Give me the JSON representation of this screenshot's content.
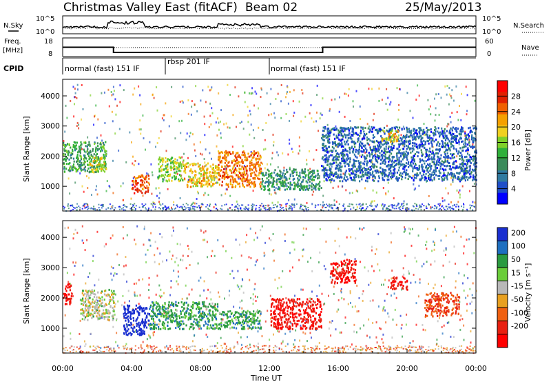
{
  "header": {
    "title": "Christmas Valley East (fitACF)",
    "beam": "Beam 02",
    "date": "25/May/2013"
  },
  "chart_data": [
    {
      "name": "noise",
      "type": "line",
      "left_label": "N.Sky",
      "left_ticks": [
        "10^5",
        "10^0"
      ],
      "right_label": "N.Search",
      "right_ticks": [
        "10^5",
        "10^0"
      ]
    },
    {
      "name": "frequency",
      "type": "line",
      "left_label": "Freq.",
      "left_unit": "[MHz]",
      "left_ticks": [
        "18",
        "8"
      ],
      "right_label": "Nave",
      "right_ticks": [
        "60",
        "0"
      ],
      "x": [
        0,
        2.95,
        2.95,
        15.1,
        15.1,
        24
      ],
      "freq": [
        13,
        13,
        10.2,
        10.2,
        13,
        13
      ]
    },
    {
      "name": "cpid",
      "type": "table",
      "label": "CPID",
      "segments": [
        {
          "start": 0,
          "end": 6,
          "text": "normal (fast) 151 IF"
        },
        {
          "start": 6,
          "end": 12,
          "text": "rbsp 201 IF"
        },
        {
          "start": 12,
          "end": 24,
          "text": "normal (fast) 151 IF"
        }
      ]
    },
    {
      "name": "power",
      "type": "heatmap",
      "ylabel": "Slant Range [km]",
      "yticks": [
        1000,
        2000,
        3000,
        4000
      ],
      "ylim": [
        180,
        4550
      ],
      "colorbar_label": "Power [dB]",
      "colorbar_ticks": [
        4,
        8,
        12,
        16,
        20,
        24,
        28
      ],
      "colorbar_range": [
        0,
        32
      ],
      "colors": [
        "#0000ff",
        "#1e4ec8",
        "#2f7aa0",
        "#3a8a5a",
        "#2fb03a",
        "#7fd02a",
        "#f0d020",
        "#f5a000",
        "#f06000",
        "#e02000",
        "#ff0000"
      ],
      "regions": [
        {
          "t": [
            0,
            2.5
          ],
          "r": [
            1500,
            2500
          ],
          "v": 12
        },
        {
          "t": [
            1.5,
            2.5
          ],
          "r": [
            1500,
            2000
          ],
          "v": 18
        },
        {
          "t": [
            4,
            5
          ],
          "r": [
            800,
            1400
          ],
          "v": 26
        },
        {
          "t": [
            5.5,
            7
          ],
          "r": [
            1200,
            2000
          ],
          "v": 16
        },
        {
          "t": [
            7,
            9
          ],
          "r": [
            1000,
            1800
          ],
          "v": 20
        },
        {
          "t": [
            9,
            11.5
          ],
          "r": [
            1000,
            2200
          ],
          "v": 24
        },
        {
          "t": [
            11.5,
            15
          ],
          "r": [
            900,
            1600
          ],
          "v": 10
        },
        {
          "t": [
            15,
            24
          ],
          "r": [
            1200,
            3000
          ],
          "v": 6
        },
        {
          "t": [
            18.5,
            19.5
          ],
          "r": [
            2500,
            2900
          ],
          "v": 20
        }
      ]
    },
    {
      "name": "velocity",
      "type": "heatmap",
      "ylabel": "Slant Range [km]",
      "yticks": [
        1000,
        2000,
        3000,
        4000
      ],
      "ylim": [
        180,
        4550
      ],
      "colorbar_label": "Velocity [m s⁻¹]",
      "colorbar_ticks": [
        200,
        100,
        50,
        15,
        -15,
        -50,
        -100,
        -200
      ],
      "colors": [
        "#1a2fd0",
        "#1e6fc0",
        "#2a9a40",
        "#6acd3a",
        "#b8b8b8",
        "#e8a020",
        "#f06010",
        "#e82010",
        "#ff0000"
      ],
      "regions": [
        {
          "t": [
            0,
            0.5
          ],
          "r": [
            1800,
            2500
          ],
          "v": -200
        },
        {
          "t": [
            1,
            3
          ],
          "r": [
            1300,
            2300
          ],
          "v": 0
        },
        {
          "t": [
            3.5,
            5
          ],
          "r": [
            800,
            1800
          ],
          "v": 200
        },
        {
          "t": [
            5,
            9
          ],
          "r": [
            1000,
            1900
          ],
          "v": 50
        },
        {
          "t": [
            9,
            11.5
          ],
          "r": [
            1000,
            1600
          ],
          "v": 50
        },
        {
          "t": [
            12,
            15
          ],
          "r": [
            1000,
            2000
          ],
          "v": -200
        },
        {
          "t": [
            15.5,
            17
          ],
          "r": [
            2500,
            3300
          ],
          "v": -200
        },
        {
          "t": [
            19,
            20
          ],
          "r": [
            2300,
            2700
          ],
          "v": -200
        },
        {
          "t": [
            21,
            23
          ],
          "r": [
            1400,
            2200
          ],
          "v": -100
        }
      ]
    }
  ],
  "x_axis": {
    "ticks": [
      "00:00",
      "04:00",
      "08:00",
      "12:00",
      "16:00",
      "20:00",
      "00:00"
    ],
    "xlabel": "Time UT",
    "xlim": [
      0,
      24
    ]
  }
}
